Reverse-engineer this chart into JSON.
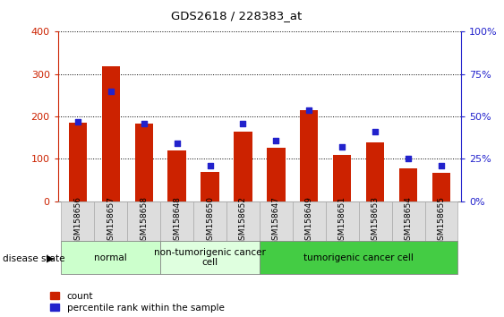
{
  "title": "GDS2618 / 228383_at",
  "samples": [
    "GSM158656",
    "GSM158657",
    "GSM158658",
    "GSM158648",
    "GSM158650",
    "GSM158652",
    "GSM158647",
    "GSM158649",
    "GSM158651",
    "GSM158653",
    "GSM158654",
    "GSM158655"
  ],
  "count_values": [
    185,
    318,
    183,
    120,
    70,
    165,
    127,
    215,
    110,
    140,
    77,
    68
  ],
  "percentile_values": [
    47,
    65,
    46,
    34,
    21,
    46,
    36,
    54,
    32,
    41,
    25,
    21
  ],
  "red_color": "#cc2200",
  "blue_color": "#2222cc",
  "ylim_left": [
    0,
    400
  ],
  "ylim_right": [
    0,
    100
  ],
  "yticks_left": [
    0,
    100,
    200,
    300,
    400
  ],
  "yticks_right": [
    0,
    25,
    50,
    75,
    100
  ],
  "ytick_labels_right": [
    "0%",
    "25%",
    "50%",
    "75%",
    "100%"
  ],
  "groups": [
    {
      "label": "normal",
      "start": 0,
      "end": 3,
      "color": "#ccffcc"
    },
    {
      "label": "non-tumorigenic cancer\ncell",
      "start": 3,
      "end": 6,
      "color": "#dfffdf"
    },
    {
      "label": "tumorigenic cancer cell",
      "start": 6,
      "end": 12,
      "color": "#44cc44"
    }
  ],
  "disease_state_label": "disease state",
  "legend_count": "count",
  "legend_percentile": "percentile rank within the sample",
  "bar_width": 0.55,
  "blue_marker_size": 6,
  "background_color": "#ffffff",
  "tick_bg_color": "#dddddd",
  "grid_color": "#000000"
}
